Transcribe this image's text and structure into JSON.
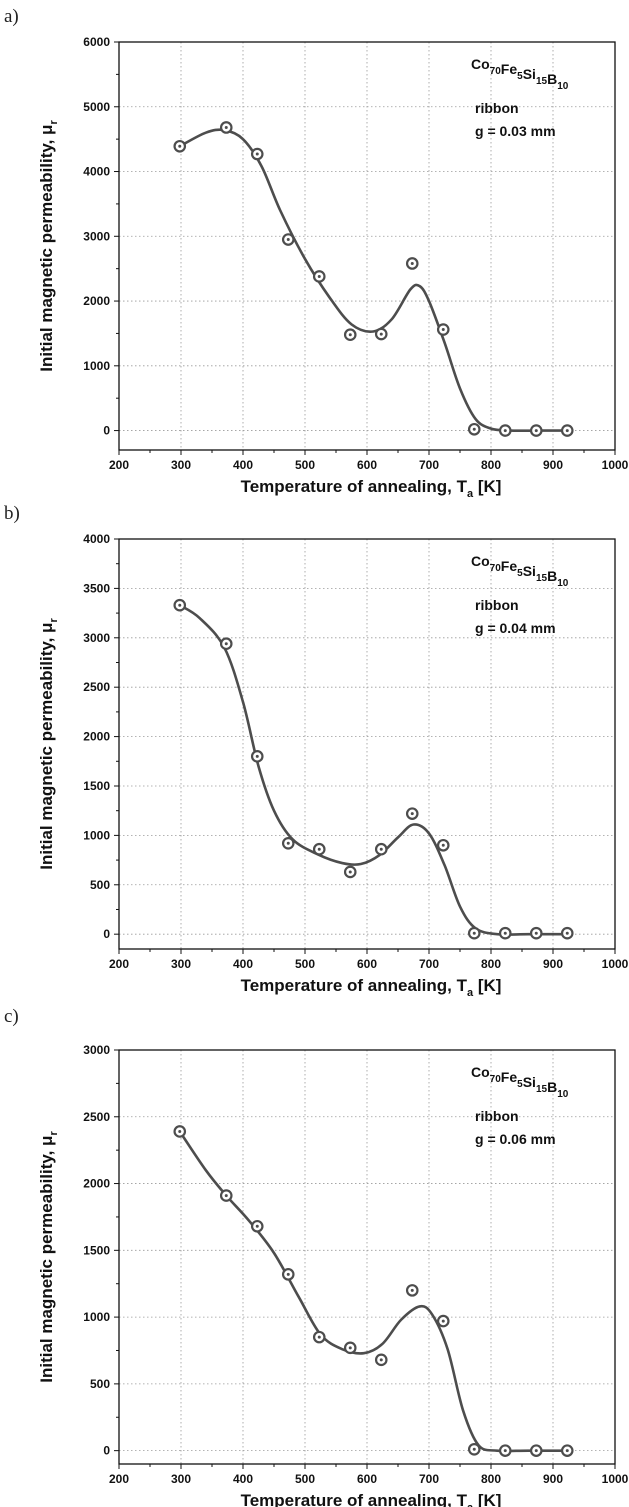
{
  "chart_data": [
    {
      "type": "line",
      "panel_label": "a)",
      "title": "",
      "xlabel": "Temperature of annealing, T",
      "xlabel_sub": "a",
      "xlabel_unit": " [K]",
      "ylabel": "Initial magnetic permeability, μ",
      "ylabel_sub": "r",
      "xlim": [
        200,
        1000
      ],
      "ylim": [
        -300,
        6000
      ],
      "xticks": [
        200,
        300,
        400,
        500,
        600,
        700,
        800,
        900,
        1000
      ],
      "yticks": [
        0,
        1000,
        2000,
        3000,
        4000,
        5000,
        6000
      ],
      "grid": true,
      "formula": [
        {
          "text": "Co",
          "sub": "70"
        },
        {
          "text": "Fe",
          "sub": "5"
        },
        {
          "text": "Si",
          "sub": "15"
        },
        {
          "text": "B",
          "sub": "10"
        }
      ],
      "annotations": [
        "ribbon",
        "g = 0.03 mm"
      ],
      "series": [
        {
          "x": [
            298,
            373,
            423,
            473,
            523,
            573,
            623,
            673,
            723,
            773,
            823,
            873,
            923
          ],
          "y": [
            4390,
            4680,
            4270,
            2950,
            2380,
            1480,
            1490,
            2580,
            1560,
            20,
            0,
            0,
            0
          ],
          "marker": "circle-dot",
          "fit_curve": [
            [
              298,
              4390
            ],
            [
              340,
              4600
            ],
            [
              370,
              4640
            ],
            [
              400,
              4500
            ],
            [
              430,
              4080
            ],
            [
              460,
              3400
            ],
            [
              500,
              2650
            ],
            [
              540,
              2050
            ],
            [
              575,
              1640
            ],
            [
              610,
              1530
            ],
            [
              640,
              1720
            ],
            [
              670,
              2180
            ],
            [
              685,
              2230
            ],
            [
              700,
              2000
            ],
            [
              725,
              1360
            ],
            [
              750,
              650
            ],
            [
              775,
              180
            ],
            [
              800,
              30
            ],
            [
              830,
              0
            ],
            [
              880,
              0
            ],
            [
              923,
              0
            ]
          ]
        }
      ]
    },
    {
      "type": "line",
      "panel_label": "b)",
      "title": "",
      "xlabel": "Temperature of annealing, T",
      "xlabel_sub": "a",
      "xlabel_unit": " [K]",
      "ylabel": "Initial magnetic permeability, μ",
      "ylabel_sub": "r",
      "xlim": [
        200,
        1000
      ],
      "ylim": [
        -150,
        4000
      ],
      "xticks": [
        200,
        300,
        400,
        500,
        600,
        700,
        800,
        900,
        1000
      ],
      "yticks": [
        0,
        500,
        1000,
        1500,
        2000,
        2500,
        3000,
        3500,
        4000
      ],
      "grid": true,
      "formula": [
        {
          "text": "Co",
          "sub": "70"
        },
        {
          "text": "Fe",
          "sub": "5"
        },
        {
          "text": "Si",
          "sub": "15"
        },
        {
          "text": "B",
          "sub": "10"
        }
      ],
      "annotations": [
        "ribbon",
        "g = 0.04 mm"
      ],
      "series": [
        {
          "x": [
            298,
            373,
            423,
            473,
            523,
            573,
            623,
            673,
            723,
            773,
            823,
            873,
            923
          ],
          "y": [
            3330,
            2940,
            1800,
            920,
            860,
            630,
            860,
            1220,
            900,
            10,
            10,
            10,
            10
          ],
          "marker": "circle-dot",
          "fit_curve": [
            [
              298,
              3330
            ],
            [
              330,
              3200
            ],
            [
              370,
              2900
            ],
            [
              400,
              2350
            ],
            [
              425,
              1700
            ],
            [
              450,
              1250
            ],
            [
              480,
              960
            ],
            [
              520,
              810
            ],
            [
              560,
              720
            ],
            [
              590,
              710
            ],
            [
              620,
              800
            ],
            [
              650,
              980
            ],
            [
              675,
              1110
            ],
            [
              700,
              1020
            ],
            [
              725,
              700
            ],
            [
              750,
              280
            ],
            [
              775,
              60
            ],
            [
              810,
              0
            ],
            [
              860,
              0
            ],
            [
              923,
              0
            ]
          ]
        }
      ]
    },
    {
      "type": "line",
      "panel_label": "c)",
      "title": "",
      "xlabel": "Temperature of annealing, T",
      "xlabel_sub": "a",
      "xlabel_unit": " [K]",
      "ylabel": "Initial magnetic permeability, μ",
      "ylabel_sub": "r",
      "xlim": [
        200,
        1000
      ],
      "ylim": [
        -100,
        3000
      ],
      "xticks": [
        200,
        300,
        400,
        500,
        600,
        700,
        800,
        900,
        1000
      ],
      "yticks": [
        0,
        500,
        1000,
        1500,
        2000,
        2500,
        3000
      ],
      "grid": true,
      "formula": [
        {
          "text": "Co",
          "sub": "70"
        },
        {
          "text": "Fe",
          "sub": "5"
        },
        {
          "text": "Si",
          "sub": "15"
        },
        {
          "text": "B",
          "sub": "10"
        }
      ],
      "annotations": [
        "ribbon",
        "g = 0.06 mm"
      ],
      "series": [
        {
          "x": [
            298,
            373,
            423,
            473,
            523,
            573,
            623,
            673,
            723,
            773,
            823,
            873,
            923
          ],
          "y": [
            2390,
            1910,
            1680,
            1320,
            850,
            770,
            680,
            1200,
            970,
            10,
            0,
            0,
            0
          ],
          "marker": "circle-dot",
          "fit_curve": [
            [
              298,
              2390
            ],
            [
              340,
              2100
            ],
            [
              373,
              1910
            ],
            [
              410,
              1720
            ],
            [
              450,
              1480
            ],
            [
              490,
              1150
            ],
            [
              525,
              870
            ],
            [
              560,
              760
            ],
            [
              595,
              730
            ],
            [
              625,
              800
            ],
            [
              655,
              980
            ],
            [
              685,
              1080
            ],
            [
              705,
              1020
            ],
            [
              730,
              760
            ],
            [
              755,
              300
            ],
            [
              780,
              40
            ],
            [
              810,
              0
            ],
            [
              860,
              0
            ],
            [
              923,
              0
            ]
          ]
        }
      ]
    }
  ]
}
